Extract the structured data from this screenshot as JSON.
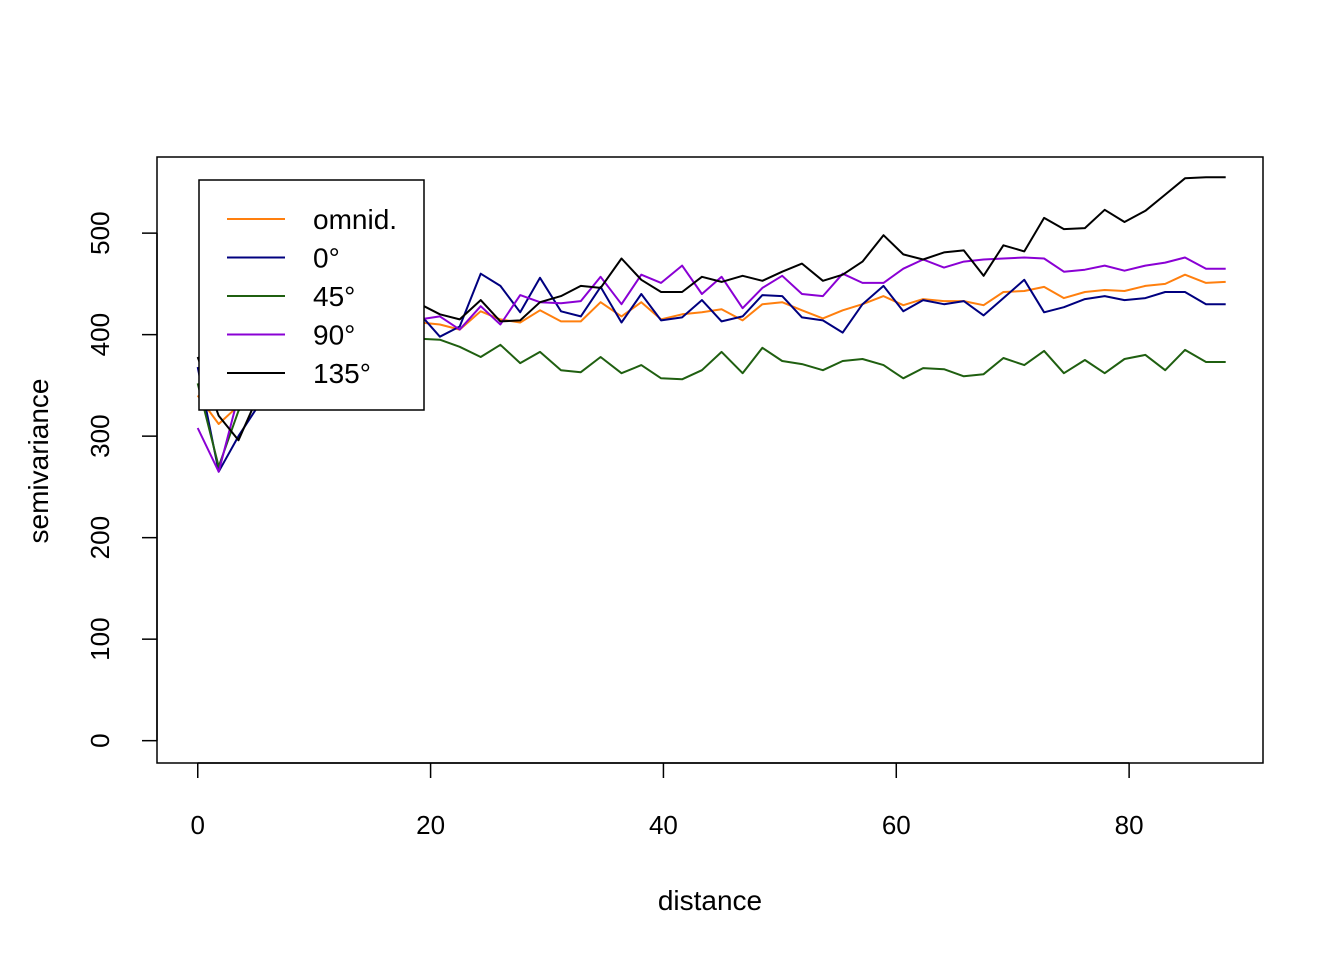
{
  "chart_data": {
    "type": "line",
    "title": "",
    "xlabel": "distance",
    "ylabel": "semivariance",
    "xlim": [
      -3.5,
      91.5
    ],
    "ylim": [
      -22,
      575
    ],
    "xticks": [
      "0",
      "20",
      "40",
      "60",
      "80"
    ],
    "yticks": [
      "0",
      "100",
      "200",
      "300",
      "400",
      "500"
    ],
    "grid": false,
    "legend_position": "top-left",
    "x": [
      0,
      1.8,
      3.5,
      5.2,
      7.0,
      8.7,
      10.4,
      12.1,
      13.9,
      15.6,
      17.3,
      19.1,
      20.8,
      22.5,
      24.3,
      26.0,
      27.7,
      29.4,
      31.2,
      32.9,
      34.6,
      36.4,
      38.1,
      39.8,
      41.6,
      43.3,
      45.0,
      46.8,
      48.5,
      50.2,
      51.9,
      53.7,
      55.4,
      57.1,
      58.9,
      60.6,
      62.3,
      64.1,
      65.8,
      67.5,
      69.2,
      71.0,
      72.7,
      74.4,
      76.2,
      77.9,
      79.6,
      81.4,
      83.1,
      84.8,
      86.6,
      88.3
    ],
    "series": [
      {
        "name": "omnid.",
        "color": "#ff7f0e",
        "values": [
          340,
          312,
          330,
          345,
          365,
          380,
          392,
          400,
          405,
          408,
          410,
          412,
          410,
          405,
          423,
          415,
          412,
          424,
          413,
          413,
          432,
          418,
          432,
          415,
          420,
          422,
          425,
          414,
          430,
          432,
          424,
          416,
          424,
          430,
          438,
          429,
          435,
          433,
          433,
          429,
          442,
          443,
          447,
          436,
          442,
          444,
          443,
          448,
          450,
          459,
          451,
          452
        ]
      },
      {
        "name": "0°",
        "color": "#00007f",
        "values": [
          368,
          265,
          300,
          330,
          360,
          385,
          400,
          405,
          410,
          412,
          415,
          420,
          398,
          408,
          460,
          448,
          422,
          456,
          423,
          418,
          447,
          412,
          440,
          414,
          417,
          434,
          413,
          418,
          439,
          438,
          417,
          414,
          402,
          430,
          448,
          423,
          434,
          430,
          433,
          419,
          436,
          454,
          422,
          427,
          435,
          438,
          434,
          436,
          442,
          442,
          430,
          430
        ]
      },
      {
        "name": "45°",
        "color": "#1f5f10",
        "values": [
          352,
          270,
          325,
          345,
          360,
          375,
          382,
          388,
          391,
          392,
          394,
          396,
          395,
          388,
          378,
          390,
          372,
          383,
          365,
          363,
          378,
          362,
          370,
          357,
          356,
          365,
          383,
          362,
          387,
          374,
          371,
          365,
          374,
          376,
          370,
          357,
          367,
          366,
          359,
          361,
          377,
          370,
          384,
          362,
          375,
          362,
          376,
          380,
          365,
          385,
          373,
          373
        ]
      },
      {
        "name": "90°",
        "color": "#8a00d4",
        "values": [
          308,
          265,
          340,
          360,
          380,
          395,
          402,
          408,
          410,
          412,
          414,
          415,
          418,
          405,
          428,
          410,
          439,
          432,
          431,
          433,
          457,
          430,
          459,
          451,
          468,
          440,
          457,
          426,
          446,
          458,
          440,
          438,
          460,
          451,
          451,
          465,
          474,
          466,
          472,
          474,
          475,
          476,
          475,
          462,
          464,
          468,
          463,
          468,
          471,
          476,
          465,
          465
        ]
      },
      {
        "name": "135°",
        "color": "#000000",
        "values": [
          378,
          320,
          296,
          340,
          370,
          390,
          405,
          415,
          420,
          425,
          428,
          430,
          420,
          415,
          434,
          413,
          414,
          432,
          438,
          448,
          446,
          475,
          454,
          442,
          442,
          457,
          452,
          458,
          453,
          462,
          470,
          453,
          459,
          472,
          498,
          479,
          474,
          481,
          483,
          458,
          488,
          482,
          515,
          504,
          505,
          523,
          511,
          522,
          538,
          554,
          555,
          555
        ]
      }
    ]
  }
}
